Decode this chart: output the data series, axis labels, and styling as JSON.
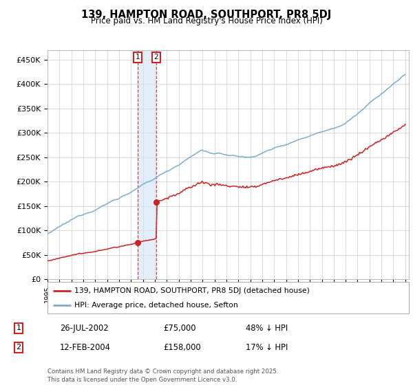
{
  "title": "139, HAMPTON ROAD, SOUTHPORT, PR8 5DJ",
  "subtitle": "Price paid vs. HM Land Registry's House Price Index (HPI)",
  "ylim": [
    0,
    470000
  ],
  "yticks": [
    0,
    50000,
    100000,
    150000,
    200000,
    250000,
    300000,
    350000,
    400000,
    450000
  ],
  "ytick_labels": [
    "£0",
    "£50K",
    "£100K",
    "£150K",
    "£200K",
    "£250K",
    "£300K",
    "£350K",
    "£400K",
    "£450K"
  ],
  "hpi_color": "#7aadcf",
  "price_color": "#cc2222",
  "sale1_year": 2002.57,
  "sale1_price": 75000,
  "sale2_year": 2004.12,
  "sale2_price": 158000,
  "legend_label_price": "139, HAMPTON ROAD, SOUTHPORT, PR8 5DJ (detached house)",
  "legend_label_hpi": "HPI: Average price, detached house, Sefton",
  "table_row1": [
    "1",
    "26-JUL-2002",
    "£75,000",
    "48% ↓ HPI"
  ],
  "table_row2": [
    "2",
    "12-FEB-2004",
    "£158,000",
    "17% ↓ HPI"
  ],
  "footnote": "Contains HM Land Registry data © Crown copyright and database right 2025.\nThis data is licensed under the Open Government Licence v3.0.",
  "background_color": "#ffffff",
  "grid_color": "#cccccc",
  "shade_color": "#d0e4f5"
}
